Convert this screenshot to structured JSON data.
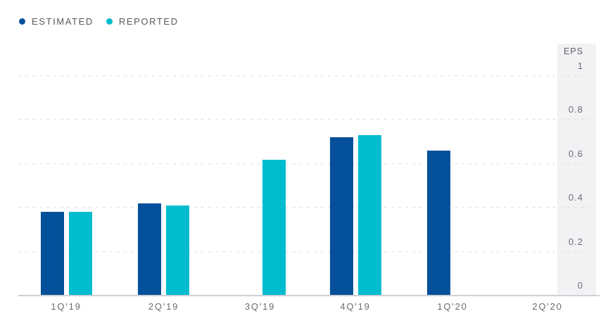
{
  "chart_data": {
    "type": "bar",
    "categories": [
      "1Q'19",
      "2Q'19",
      "3Q'19",
      "4Q'19",
      "1Q'20",
      "2Q'20"
    ],
    "series": [
      {
        "name": "ESTIMATED",
        "color": "#05509a",
        "values": [
          0.38,
          0.42,
          null,
          0.72,
          0.66,
          null
        ]
      },
      {
        "name": "REPORTED",
        "color": "#00bcce",
        "values": [
          0.38,
          0.41,
          0.62,
          0.73,
          null,
          null
        ]
      }
    ],
    "title": "",
    "xlabel": "",
    "ylabel": "EPS",
    "ylim": [
      0,
      1
    ],
    "tick_labels": [
      "0",
      "0.2",
      "0.4",
      "0.6",
      "0.8",
      "1"
    ],
    "grid": "horizontal-dashed",
    "legend_position": "top-left",
    "axis_side": "right-panel"
  },
  "colors": {
    "estimated": "#05509a",
    "reported": "#00bcce",
    "axis_panel_bg": "#f2f2f4",
    "gridline": "#e0e0e3",
    "axis_line": "#cdd1d6",
    "label_text": "#696c6f",
    "legend_text": "#55585c"
  }
}
